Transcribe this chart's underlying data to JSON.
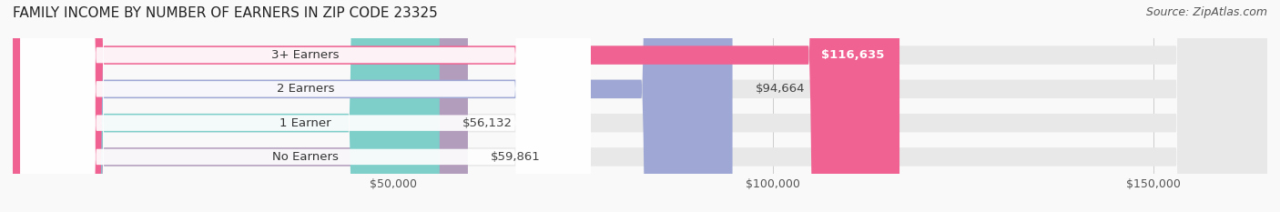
{
  "title": "FAMILY INCOME BY NUMBER OF EARNERS IN ZIP CODE 23325",
  "source": "Source: ZipAtlas.com",
  "categories": [
    "No Earners",
    "1 Earner",
    "2 Earners",
    "3+ Earners"
  ],
  "values": [
    59861,
    56132,
    94664,
    116635
  ],
  "bar_colors": [
    "#b39dbd",
    "#7ececa",
    "#9fa8d4",
    "#f06292"
  ],
  "bar_bg_color": "#eeeeee",
  "label_values": [
    "$59,861",
    "$56,132",
    "$94,664",
    "$116,635"
  ],
  "xmax": 165000,
  "xticks": [
    50000,
    100000,
    150000
  ],
  "xtick_labels": [
    "$50,000",
    "$100,000",
    "$150,000"
  ],
  "background_color": "#f9f9f9",
  "bar_bg": "#e8e8e8",
  "title_fontsize": 11,
  "source_fontsize": 9,
  "label_fontsize": 9.5,
  "tick_fontsize": 9
}
